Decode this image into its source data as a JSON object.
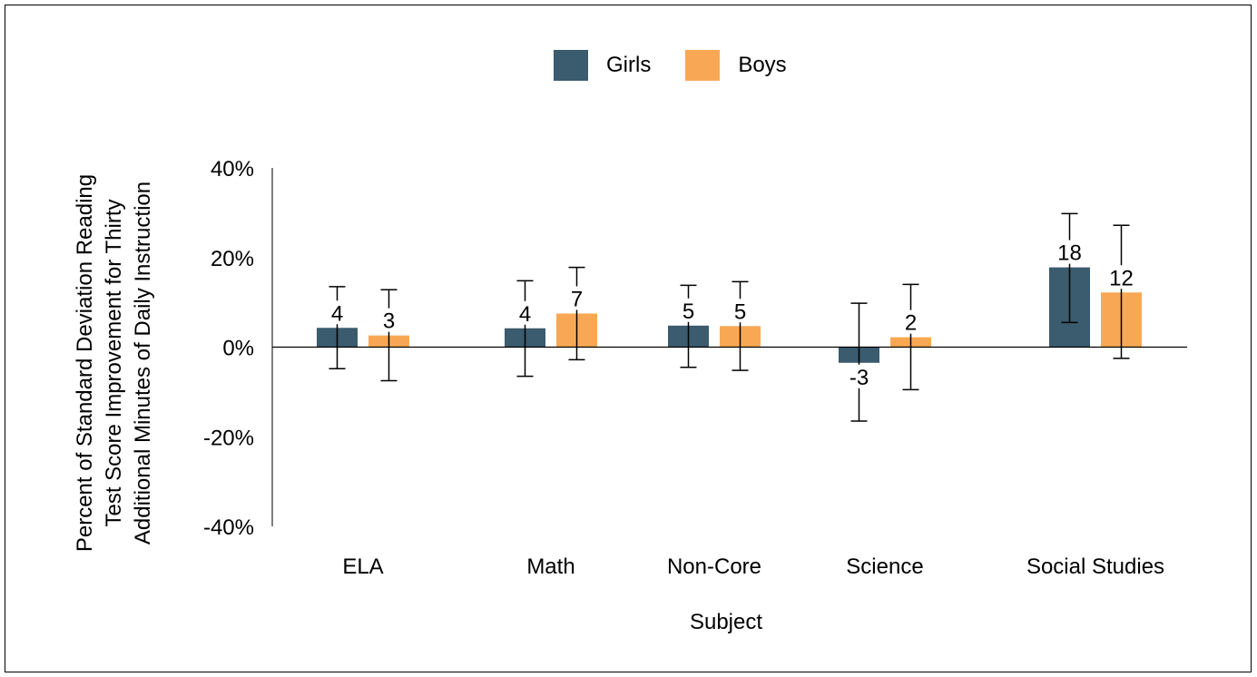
{
  "chart_data": {
    "type": "bar",
    "categories": [
      "ELA",
      "Math",
      "Non-Core",
      "Science",
      "Social Studies"
    ],
    "series": [
      {
        "name": "Girls",
        "color": "#3b5b6e",
        "values": [
          4.3,
          4.2,
          4.8,
          -3.5,
          17.8
        ],
        "labels": [
          "4",
          "4",
          "5",
          "-3",
          "18"
        ],
        "err_low": [
          -4.8,
          -6.5,
          -4.5,
          -16.5,
          5.5
        ],
        "err_high": [
          13.5,
          14.8,
          13.8,
          9.8,
          29.8
        ]
      },
      {
        "name": "Boys",
        "color": "#f8a854",
        "values": [
          2.6,
          7.5,
          4.7,
          2.2,
          12.2
        ],
        "labels": [
          "3",
          "7",
          "5",
          "2",
          "12"
        ],
        "err_low": [
          -7.5,
          -2.8,
          -5.2,
          -9.5,
          -2.5
        ],
        "err_high": [
          12.8,
          17.8,
          14.6,
          14.0,
          27.2
        ]
      }
    ],
    "ylim": [
      -40,
      40
    ],
    "yticks": [
      -40,
      -20,
      0,
      20,
      40
    ],
    "ytick_labels": [
      "-40%",
      "-20%",
      "0%",
      "20%",
      "40%"
    ],
    "xlabel": "Subject",
    "ylabel_lines": [
      "Percent of Standard Deviation Reading",
      "Test Score Improvement for Thirty",
      "Additional Minutes of Daily Instruction"
    ],
    "legend_position": "top-center",
    "grid": false
  }
}
